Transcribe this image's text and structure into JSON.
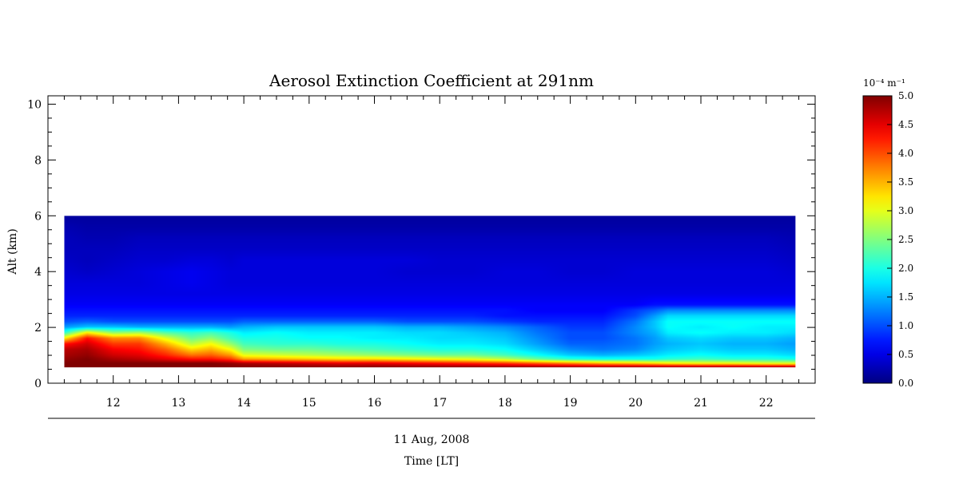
{
  "chart_data": {
    "type": "heatmap",
    "title": "Aerosol Extinction Coefficient at 291nm",
    "xlabel": "Time [LT]",
    "date_label": "11 Aug, 2008",
    "ylabel": "Alt (km)",
    "xlim": [
      11,
      22.75
    ],
    "ylim": [
      0,
      10.3
    ],
    "x_ticks": [
      12,
      13,
      14,
      15,
      16,
      17,
      18,
      19,
      20,
      21,
      22
    ],
    "y_ticks": [
      0,
      2,
      4,
      6,
      8,
      10
    ],
    "data_extent": {
      "time": [
        11.25,
        22.45
      ],
      "alt": [
        0.55,
        6.0
      ]
    },
    "colorbar": {
      "unit_label": "10⁻⁴ m⁻¹",
      "range": [
        0.0,
        5.0
      ],
      "ticks": [
        "0.0",
        "0.5",
        "1.0",
        "1.5",
        "2.0",
        "2.5",
        "3.0",
        "3.5",
        "4.0",
        "4.5",
        "5.0"
      ],
      "colormap": "jet"
    },
    "time": [
      11.25,
      11.6,
      12.0,
      12.4,
      12.8,
      13.2,
      13.5,
      13.8,
      14.0,
      14.5,
      15.0,
      15.5,
      16.0,
      16.5,
      17.0,
      17.5,
      18.0,
      18.5,
      19.0,
      19.5,
      20.0,
      20.3,
      20.5,
      21.0,
      21.5,
      22.0,
      22.45
    ],
    "altitude": [
      0.55,
      0.7,
      0.85,
      1.0,
      1.2,
      1.4,
      1.6,
      1.8,
      2.0,
      2.2,
      2.4,
      2.6,
      2.8,
      3.2,
      3.6,
      4.0,
      4.4,
      4.8,
      5.2,
      5.6,
      6.0
    ],
    "values": [
      [
        5.0,
        5.0,
        5.0,
        5.0,
        5.0,
        5.0,
        5.0,
        5.0,
        5.0,
        5.0,
        5.0,
        5.0,
        5.0,
        5.0,
        5.0,
        5.0,
        5.0,
        5.0,
        5.0,
        5.0,
        5.0,
        5.0,
        5.0,
        5.0,
        5.0,
        5.0,
        5.0
      ],
      [
        5.0,
        5.0,
        5.0,
        5.0,
        5.0,
        5.0,
        5.0,
        4.9,
        4.8,
        4.7,
        4.6,
        4.5,
        4.5,
        4.4,
        4.3,
        4.2,
        4.1,
        3.9,
        3.7,
        3.5,
        3.4,
        3.3,
        3.2,
        3.1,
        3.1,
        3.0,
        3.0
      ],
      [
        4.9,
        5.0,
        4.8,
        4.7,
        4.5,
        4.3,
        4.3,
        4.1,
        3.6,
        3.5,
        3.4,
        3.3,
        3.3,
        3.2,
        3.1,
        3.0,
        2.8,
        2.4,
        2.1,
        2.0,
        2.0,
        2.0,
        2.1,
        2.2,
        2.1,
        2.1,
        2.0
      ],
      [
        4.8,
        4.9,
        4.6,
        4.5,
        4.2,
        3.8,
        3.9,
        3.6,
        3.0,
        2.9,
        2.8,
        2.7,
        2.6,
        2.5,
        2.4,
        2.4,
        2.2,
        1.9,
        1.6,
        1.5,
        1.6,
        1.7,
        1.8,
        1.9,
        1.8,
        1.8,
        1.7
      ],
      [
        4.7,
        4.8,
        4.4,
        4.3,
        3.9,
        3.3,
        3.5,
        3.1,
        2.5,
        2.4,
        2.4,
        2.3,
        2.2,
        2.1,
        2.0,
        2.0,
        1.9,
        1.6,
        1.3,
        1.2,
        1.3,
        1.5,
        1.6,
        1.7,
        1.6,
        1.6,
        1.5
      ],
      [
        4.3,
        4.6,
        4.1,
        4.1,
        3.5,
        2.8,
        3.1,
        2.6,
        2.2,
        2.1,
        2.1,
        2.0,
        2.0,
        1.9,
        1.8,
        1.8,
        1.7,
        1.4,
        1.1,
        1.1,
        1.2,
        1.4,
        1.5,
        1.6,
        1.5,
        1.5,
        1.4
      ],
      [
        3.2,
        4.3,
        3.7,
        3.7,
        3.0,
        2.4,
        2.6,
        2.2,
        2.0,
        2.0,
        1.9,
        1.9,
        1.8,
        1.8,
        1.7,
        1.7,
        1.6,
        1.3,
        1.0,
        1.0,
        1.2,
        1.4,
        1.6,
        1.7,
        1.6,
        1.6,
        1.5
      ],
      [
        2.1,
        3.2,
        2.6,
        2.7,
        2.3,
        2.1,
        2.2,
        2.0,
        1.8,
        1.9,
        1.8,
        1.8,
        1.8,
        1.7,
        1.7,
        1.6,
        1.5,
        1.2,
        1.0,
        1.0,
        1.3,
        1.5,
        1.8,
        1.9,
        1.8,
        1.8,
        1.7
      ],
      [
        1.4,
        1.6,
        1.6,
        1.5,
        1.5,
        1.5,
        1.5,
        1.4,
        1.5,
        1.6,
        1.6,
        1.6,
        1.6,
        1.5,
        1.5,
        1.4,
        1.3,
        1.1,
        0.9,
        0.9,
        1.3,
        1.6,
        1.9,
        1.8,
        1.9,
        1.8,
        1.8
      ],
      [
        1.0,
        1.1,
        1.0,
        1.0,
        1.0,
        1.0,
        1.0,
        1.0,
        1.1,
        1.1,
        1.1,
        1.1,
        1.1,
        1.0,
        1.0,
        1.0,
        0.9,
        0.8,
        0.8,
        0.8,
        1.2,
        1.6,
        1.9,
        1.9,
        1.9,
        1.9,
        1.9
      ],
      [
        0.8,
        0.8,
        0.8,
        0.8,
        0.8,
        0.8,
        0.8,
        0.8,
        0.8,
        0.8,
        0.8,
        0.8,
        0.8,
        0.8,
        0.8,
        0.8,
        0.7,
        0.7,
        0.7,
        0.7,
        1.0,
        1.4,
        1.7,
        1.7,
        1.7,
        1.7,
        1.7
      ],
      [
        0.7,
        0.7,
        0.7,
        0.7,
        0.7,
        0.7,
        0.7,
        0.7,
        0.7,
        0.7,
        0.7,
        0.7,
        0.7,
        0.7,
        0.7,
        0.7,
        0.7,
        0.6,
        0.6,
        0.6,
        0.9,
        1.1,
        1.3,
        1.3,
        1.3,
        1.3,
        1.3
      ],
      [
        0.6,
        0.6,
        0.6,
        0.6,
        0.6,
        0.6,
        0.6,
        0.6,
        0.6,
        0.6,
        0.6,
        0.6,
        0.6,
        0.6,
        0.6,
        0.6,
        0.6,
        0.6,
        0.6,
        0.6,
        0.6,
        0.7,
        0.7,
        0.7,
        0.7,
        0.7,
        0.7
      ],
      [
        0.5,
        0.5,
        0.5,
        0.5,
        0.5,
        0.5,
        0.5,
        0.5,
        0.5,
        0.5,
        0.5,
        0.5,
        0.5,
        0.5,
        0.5,
        0.5,
        0.5,
        0.5,
        0.5,
        0.5,
        0.5,
        0.5,
        0.5,
        0.5,
        0.5,
        0.5,
        0.5
      ],
      [
        0.45,
        0.45,
        0.45,
        0.45,
        0.5,
        0.55,
        0.5,
        0.45,
        0.45,
        0.45,
        0.45,
        0.45,
        0.45,
        0.45,
        0.45,
        0.45,
        0.45,
        0.45,
        0.45,
        0.45,
        0.45,
        0.45,
        0.45,
        0.45,
        0.45,
        0.45,
        0.45
      ],
      [
        0.4,
        0.35,
        0.4,
        0.45,
        0.5,
        0.55,
        0.5,
        0.45,
        0.45,
        0.45,
        0.45,
        0.45,
        0.45,
        0.4,
        0.4,
        0.4,
        0.45,
        0.45,
        0.4,
        0.4,
        0.45,
        0.45,
        0.45,
        0.45,
        0.45,
        0.45,
        0.4
      ],
      [
        0.35,
        0.3,
        0.35,
        0.4,
        0.4,
        0.45,
        0.45,
        0.4,
        0.45,
        0.45,
        0.45,
        0.45,
        0.45,
        0.45,
        0.4,
        0.4,
        0.4,
        0.4,
        0.4,
        0.4,
        0.4,
        0.4,
        0.4,
        0.4,
        0.4,
        0.4,
        0.35
      ],
      [
        0.3,
        0.3,
        0.3,
        0.35,
        0.35,
        0.35,
        0.35,
        0.35,
        0.35,
        0.35,
        0.35,
        0.35,
        0.35,
        0.35,
        0.35,
        0.35,
        0.35,
        0.35,
        0.35,
        0.35,
        0.35,
        0.35,
        0.35,
        0.35,
        0.35,
        0.35,
        0.3
      ],
      [
        0.3,
        0.25,
        0.25,
        0.3,
        0.3,
        0.3,
        0.3,
        0.3,
        0.3,
        0.3,
        0.3,
        0.3,
        0.3,
        0.3,
        0.3,
        0.3,
        0.3,
        0.3,
        0.3,
        0.3,
        0.3,
        0.3,
        0.3,
        0.3,
        0.3,
        0.3,
        0.25
      ],
      [
        0.25,
        0.2,
        0.2,
        0.2,
        0.2,
        0.2,
        0.2,
        0.2,
        0.2,
        0.2,
        0.2,
        0.2,
        0.2,
        0.2,
        0.2,
        0.2,
        0.2,
        0.2,
        0.2,
        0.2,
        0.2,
        0.2,
        0.2,
        0.2,
        0.2,
        0.2,
        0.2
      ],
      [
        0.15,
        0.15,
        0.15,
        0.15,
        0.15,
        0.15,
        0.15,
        0.15,
        0.15,
        0.15,
        0.15,
        0.15,
        0.15,
        0.15,
        0.15,
        0.15,
        0.15,
        0.15,
        0.15,
        0.15,
        0.15,
        0.15,
        0.15,
        0.15,
        0.15,
        0.15,
        0.15
      ]
    ]
  }
}
